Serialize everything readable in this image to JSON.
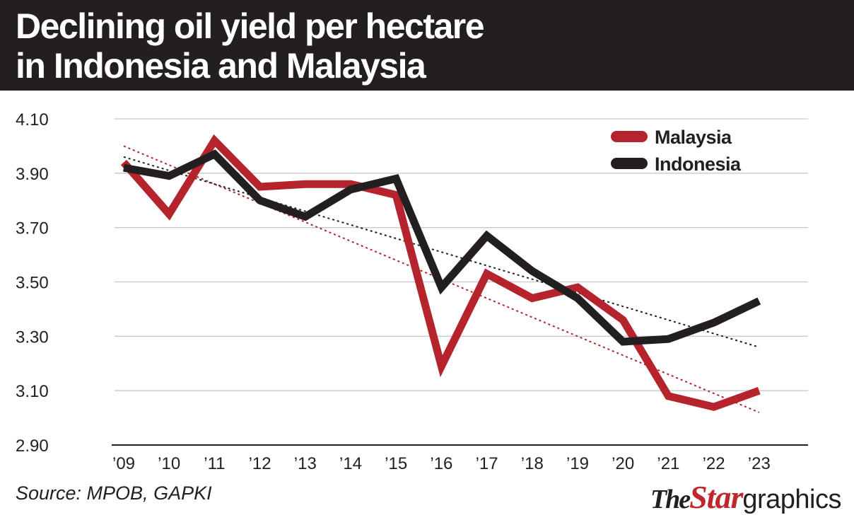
{
  "header": {
    "title_line1": "Declining oil yield per hectare",
    "title_line2": "in Indonesia and Malaysia"
  },
  "chart_data": {
    "type": "line",
    "title": "Declining oil yield per hectare in Indonesia and Malaysia",
    "xlabel": "",
    "ylabel": "",
    "categories": [
      "’09",
      "’10",
      "’11",
      "’12",
      "’13",
      "’14",
      "’15",
      "’16",
      "’17",
      "’18",
      "’19",
      "’20",
      "’21",
      "’22",
      "’23"
    ],
    "yticks": [
      "2.90",
      "3.10",
      "3.30",
      "3.50",
      "3.70",
      "3.90",
      "4.10"
    ],
    "ylim": [
      2.9,
      4.1
    ],
    "grid": "horizontal",
    "legend_position": "top-right",
    "series": [
      {
        "name": "Malaysia",
        "color": "#b5242d",
        "values": [
          3.94,
          3.75,
          4.02,
          3.85,
          3.86,
          3.86,
          3.82,
          3.19,
          3.53,
          3.44,
          3.48,
          3.36,
          3.08,
          3.04,
          3.1
        ],
        "trend": [
          4.0,
          3.93,
          3.86,
          3.79,
          3.72,
          3.65,
          3.58,
          3.51,
          3.44,
          3.37,
          3.3,
          3.23,
          3.16,
          3.09,
          3.02
        ]
      },
      {
        "name": "Indonesia",
        "color": "#231f20",
        "values": [
          3.92,
          3.89,
          3.97,
          3.8,
          3.74,
          3.84,
          3.88,
          3.48,
          3.67,
          3.54,
          3.44,
          3.28,
          3.29,
          3.35,
          3.43
        ],
        "trend": [
          3.96,
          3.91,
          3.86,
          3.81,
          3.76,
          3.71,
          3.66,
          3.61,
          3.56,
          3.51,
          3.46,
          3.41,
          3.36,
          3.31,
          3.26
        ]
      }
    ]
  },
  "footer": {
    "source": "Source: MPOB, GAPKI",
    "brand_the": "The",
    "brand_star": "Star",
    "brand_graphics": "graphics"
  }
}
